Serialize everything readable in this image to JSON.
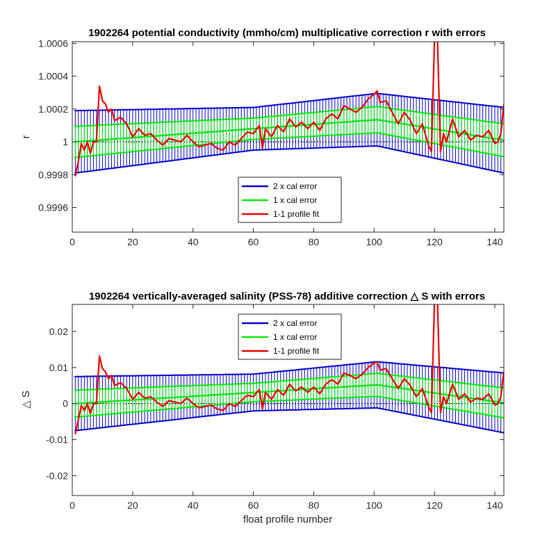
{
  "colors": {
    "two_x_cal_error": "#0000cc",
    "one_x_cal_error": "#00ee00",
    "profile_fit": "#ee0000",
    "axes": "#262626"
  },
  "chart_data": [
    {
      "type": "line",
      "title": "1902264 potential conductivity (mmho/cm) multiplicative correction r with errors",
      "xlabel": "",
      "ylabel": "r",
      "xlim": [
        0,
        143
      ],
      "ylim": [
        0.99945,
        1.00061
      ],
      "xticks": [
        0,
        20,
        40,
        60,
        80,
        100,
        120,
        140
      ],
      "yticks": [
        0.9996,
        0.9998,
        1,
        1.0002,
        1.0004,
        1.0006
      ],
      "ytick_labels": [
        "0.9996",
        "0.9998",
        "1",
        "1.0002",
        "1.0004",
        "1.0006"
      ],
      "grid": false,
      "legend_position": "lower-center",
      "series": [
        {
          "name": "2 x cal error",
          "center": {
            "x": [
              1,
              101,
              143
            ],
            "y": [
              1.0,
              1.000135,
              1.00001
            ]
          },
          "halfwidth": {
            "x": [
              1,
              60,
              101,
              143
            ],
            "y": [
              0.00019,
              0.00013,
              0.00016,
              0.0002
            ]
          }
        },
        {
          "name": "1 x cal error",
          "center": {
            "x": [
              1,
              101,
              143
            ],
            "y": [
              1.0,
              1.000135,
              1.00001
            ]
          },
          "halfwidth": {
            "x": [
              1,
              60,
              101,
              143
            ],
            "y": [
              9.5e-05,
              6.5e-05,
              8e-05,
              0.0001
            ]
          }
        },
        {
          "name": "1-1 profile fit",
          "x": [
            1,
            2,
            3,
            4,
            5,
            6,
            7,
            8,
            9,
            10,
            11,
            12,
            13,
            14,
            16,
            18,
            20,
            22,
            24,
            26,
            28,
            30,
            32,
            34,
            36,
            38,
            40,
            42,
            44,
            46,
            48,
            50,
            52,
            54,
            56,
            58,
            60,
            62,
            63,
            64,
            66,
            68,
            70,
            72,
            74,
            76,
            78,
            80,
            82,
            84,
            86,
            88,
            90,
            92,
            94,
            96,
            98,
            100,
            101,
            102,
            104,
            106,
            108,
            110,
            112,
            114,
            116,
            118,
            119,
            120,
            121,
            122,
            123,
            124,
            126,
            128,
            130,
            132,
            134,
            136,
            138,
            140,
            141,
            142,
            143
          ],
          "y": [
            0.99979,
            0.99988,
            0.99999,
            0.99995,
            1.0,
            0.99993,
            1.0,
            1.0,
            1.00034,
            1.00025,
            1.00023,
            1.00018,
            1.0002,
            1.00013,
            1.00015,
            1.00011,
            1.00003,
            1.00008,
            1.00004,
            1.00005,
            1.00001,
            0.99998,
            1.00002,
            1.00001,
            1.0,
            1.00004,
            1.0,
            0.99997,
            0.99998,
            0.99999,
            0.99996,
            0.99995,
            1.0,
            0.99998,
            1.00002,
            1.00006,
            1.00005,
            1.0001,
            0.99996,
            1.00008,
            1.00003,
            1.0001,
            1.00006,
            1.00014,
            1.00009,
            1.00012,
            1.00008,
            1.00012,
            1.00007,
            1.00014,
            1.00017,
            1.00014,
            1.00022,
            1.0002,
            1.00018,
            1.00021,
            1.00026,
            1.00029,
            1.00031,
            1.00024,
            1.00025,
            1.00018,
            1.00011,
            1.00018,
            1.00013,
            1.00005,
            1.00011,
            0.99998,
            0.99994,
            1.00062,
            1.00062,
            0.99994,
            1.00005,
            1.0,
            1.00014,
            1.00003,
            1.00007,
            1.00001,
            1.00004,
            1.00003,
            1.00007,
            0.99999,
            1.0,
            1.00005,
            1.00023
          ]
        }
      ]
    },
    {
      "type": "line",
      "title": "1902264 vertically-averaged salinity (PSS-78) additive correction △ S with errors",
      "xlabel": "float profile number",
      "ylabel": "△ S",
      "xlim": [
        0,
        143
      ],
      "ylim": [
        -0.0255,
        0.0275
      ],
      "xticks": [
        0,
        20,
        40,
        60,
        80,
        100,
        120,
        140
      ],
      "yticks": [
        -0.02,
        -0.01,
        0,
        0.01,
        0.02
      ],
      "ytick_labels": [
        "-0.02",
        "-0.01",
        "0",
        "0.01",
        "0.02"
      ],
      "grid": false,
      "legend_position": "top-center",
      "series": [
        {
          "name": "2 x cal error",
          "center": {
            "x": [
              1,
              101,
              143
            ],
            "y": [
              0.0,
              0.0052,
              0.0002
            ]
          },
          "halfwidth": {
            "x": [
              1,
              60,
              101,
              143
            ],
            "y": [
              0.0075,
              0.0051,
              0.0064,
              0.0083
            ]
          }
        },
        {
          "name": "1 x cal error",
          "center": {
            "x": [
              1,
              101,
              143
            ],
            "y": [
              0.0,
              0.0052,
              0.0002
            ]
          },
          "halfwidth": {
            "x": [
              1,
              60,
              101,
              143
            ],
            "y": [
              0.00375,
              0.00255,
              0.0032,
              0.00415
            ]
          }
        },
        {
          "name": "1-1 profile fit",
          "x": [
            1,
            2,
            3,
            4,
            5,
            6,
            7,
            8,
            9,
            10,
            11,
            12,
            13,
            14,
            16,
            18,
            20,
            22,
            24,
            26,
            28,
            30,
            32,
            34,
            36,
            38,
            40,
            42,
            44,
            46,
            48,
            50,
            52,
            54,
            56,
            58,
            60,
            62,
            63,
            64,
            66,
            68,
            70,
            72,
            74,
            76,
            78,
            80,
            82,
            84,
            86,
            88,
            90,
            92,
            94,
            96,
            98,
            100,
            101,
            102,
            104,
            106,
            108,
            110,
            112,
            114,
            116,
            118,
            119,
            120,
            121,
            122,
            123,
            124,
            126,
            128,
            130,
            132,
            134,
            136,
            138,
            140,
            141,
            142,
            143
          ],
          "y": [
            -0.0085,
            -0.0045,
            -0.0005,
            -0.002,
            0.0,
            -0.0028,
            0.0,
            0.0,
            0.0132,
            0.0097,
            0.0088,
            0.0069,
            0.0078,
            0.005,
            0.0058,
            0.0042,
            0.0012,
            0.0031,
            0.0015,
            0.0019,
            0.0004,
            -0.0008,
            0.0008,
            0.0004,
            0.0,
            0.0015,
            0.0,
            -0.0012,
            -0.0008,
            -0.0004,
            -0.0015,
            -0.0019,
            0.0,
            -0.0008,
            0.0008,
            0.0023,
            0.0019,
            0.0039,
            -0.0015,
            0.0031,
            0.0012,
            0.0039,
            0.0023,
            0.0054,
            0.0035,
            0.0046,
            0.0031,
            0.0046,
            0.0027,
            0.0054,
            0.0066,
            0.0054,
            0.0085,
            0.0078,
            0.0069,
            0.0081,
            0.01,
            0.0112,
            0.0115,
            0.0093,
            0.0097,
            0.0069,
            0.0042,
            0.0069,
            0.005,
            0.0019,
            0.0042,
            -0.0008,
            -0.0025,
            0.028,
            0.028,
            -0.0025,
            0.0019,
            0.0,
            0.0054,
            0.0012,
            0.0027,
            0.0004,
            0.0015,
            0.0012,
            0.0027,
            -0.0004,
            0.0,
            0.0019,
            0.0089
          ]
        }
      ]
    }
  ]
}
